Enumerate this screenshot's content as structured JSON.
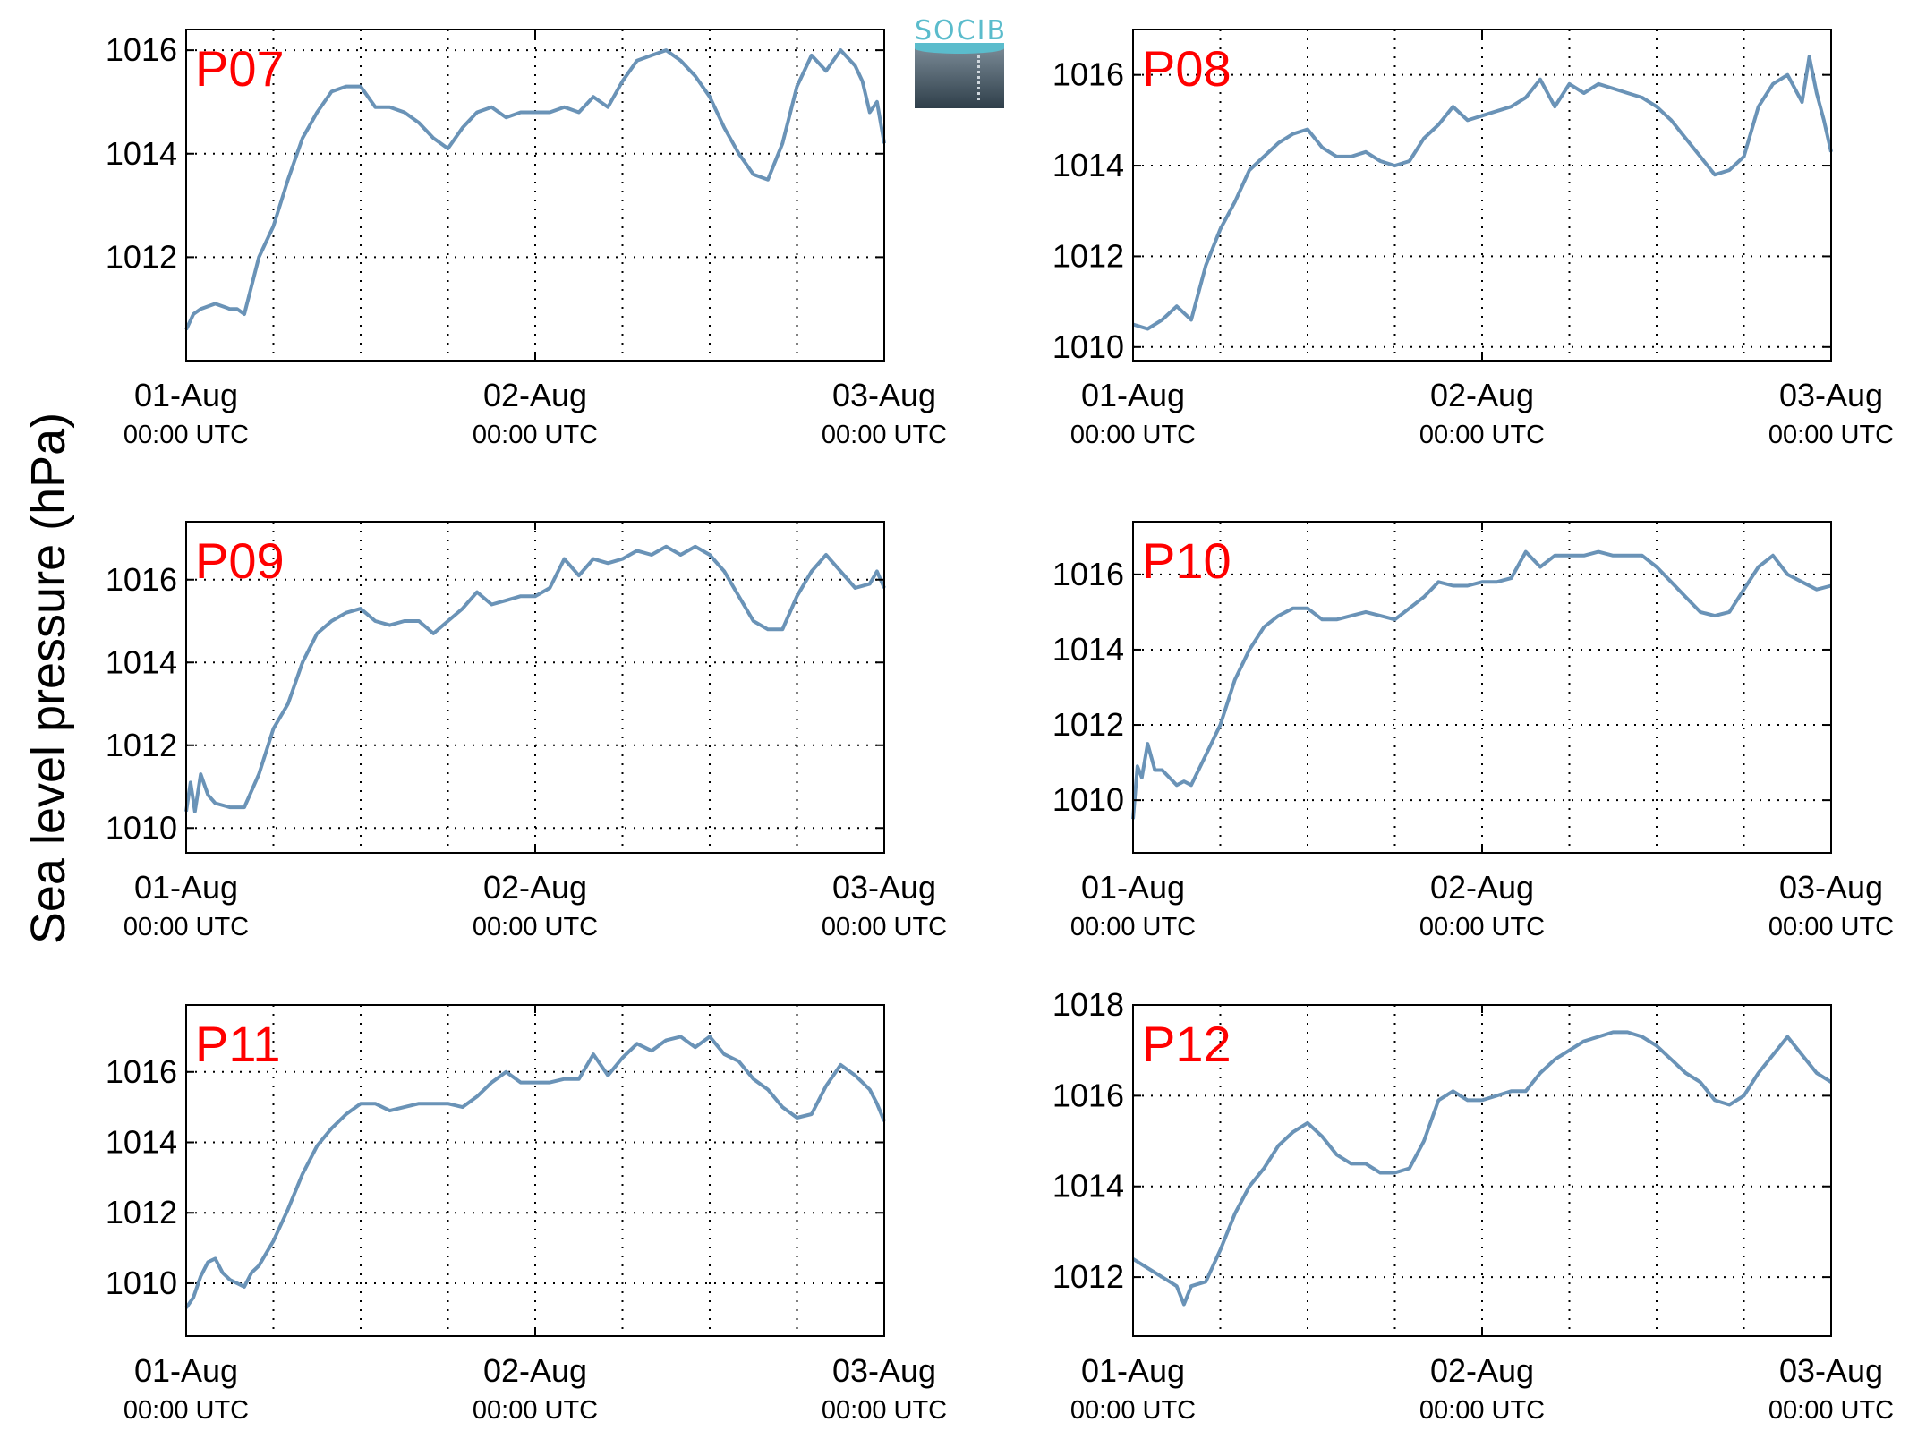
{
  "figure": {
    "ylabel": "Sea level pressure (hPa)",
    "logo_text": "SOCIB",
    "line_color": "#6a93b7",
    "station_label_color": "#ff0000"
  },
  "chart_data": [
    {
      "type": "line",
      "title": "P07",
      "x_ticks": [
        {
          "date": "01-Aug",
          "time": "00:00 UTC"
        },
        {
          "date": "02-Aug",
          "time": "00:00 UTC"
        },
        {
          "date": "03-Aug",
          "time": "00:00 UTC"
        }
      ],
      "xlim_hours": [
        0,
        48
      ],
      "ylim": [
        1010.0,
        1016.4
      ],
      "yticks": [
        1012,
        1014,
        1016
      ],
      "grid": true,
      "series": [
        {
          "x": [
            0,
            0.5,
            1,
            2,
            3,
            3.5,
            4,
            5,
            6,
            7,
            8,
            9,
            10,
            11,
            12,
            13,
            14,
            15,
            16,
            17,
            18,
            19,
            20,
            21,
            22,
            23,
            24,
            25,
            26,
            27,
            28,
            29,
            30,
            31,
            32,
            33,
            34,
            35,
            36,
            37,
            38,
            39,
            40,
            41,
            42,
            43,
            44,
            45,
            46,
            46.5,
            47,
            47.5,
            48
          ],
          "y": [
            1010.6,
            1010.9,
            1011.0,
            1011.1,
            1011.0,
            1011.0,
            1010.9,
            1012.0,
            1012.6,
            1013.5,
            1014.3,
            1014.8,
            1015.2,
            1015.3,
            1015.3,
            1014.9,
            1014.9,
            1014.8,
            1014.6,
            1014.3,
            1014.1,
            1014.5,
            1014.8,
            1014.9,
            1014.7,
            1014.8,
            1014.8,
            1014.8,
            1014.9,
            1014.8,
            1015.1,
            1014.9,
            1015.4,
            1015.8,
            1015.9,
            1016.0,
            1015.8,
            1015.5,
            1015.1,
            1014.5,
            1014.0,
            1013.6,
            1013.5,
            1014.2,
            1015.3,
            1015.9,
            1015.6,
            1016.0,
            1015.7,
            1015.4,
            1014.8,
            1015.0,
            1014.2
          ]
        }
      ]
    },
    {
      "type": "line",
      "title": "P08",
      "x_ticks": [
        {
          "date": "01-Aug",
          "time": "00:00 UTC"
        },
        {
          "date": "02-Aug",
          "time": "00:00 UTC"
        },
        {
          "date": "03-Aug",
          "time": "00:00 UTC"
        }
      ],
      "xlim_hours": [
        0,
        48
      ],
      "ylim": [
        1009.7,
        1017.0
      ],
      "yticks": [
        1010,
        1012,
        1014,
        1016
      ],
      "grid": true,
      "series": [
        {
          "x": [
            0,
            1,
            2,
            3,
            4,
            5,
            6,
            7,
            8,
            9,
            10,
            11,
            12,
            13,
            14,
            15,
            16,
            17,
            18,
            19,
            20,
            21,
            22,
            23,
            24,
            25,
            26,
            27,
            28,
            29,
            30,
            31,
            32,
            33,
            34,
            35,
            36,
            37,
            38,
            39,
            40,
            41,
            42,
            43,
            44,
            45,
            46,
            46.5,
            47,
            47.5,
            48
          ],
          "y": [
            1010.5,
            1010.4,
            1010.6,
            1010.9,
            1010.6,
            1011.8,
            1012.6,
            1013.2,
            1013.9,
            1014.2,
            1014.5,
            1014.7,
            1014.8,
            1014.4,
            1014.2,
            1014.2,
            1014.3,
            1014.1,
            1014.0,
            1014.1,
            1014.6,
            1014.9,
            1015.3,
            1015.0,
            1015.1,
            1015.2,
            1015.3,
            1015.5,
            1015.9,
            1015.3,
            1015.8,
            1015.6,
            1015.8,
            1015.7,
            1015.6,
            1015.5,
            1015.3,
            1015.0,
            1014.6,
            1014.2,
            1013.8,
            1013.9,
            1014.2,
            1015.3,
            1015.8,
            1016.0,
            1015.4,
            1016.4,
            1015.6,
            1015.0,
            1014.3
          ]
        }
      ]
    },
    {
      "type": "line",
      "title": "P09",
      "x_ticks": [
        {
          "date": "01-Aug",
          "time": "00:00 UTC"
        },
        {
          "date": "02-Aug",
          "time": "00:00 UTC"
        },
        {
          "date": "03-Aug",
          "time": "00:00 UTC"
        }
      ],
      "xlim_hours": [
        0,
        48
      ],
      "ylim": [
        1009.4,
        1017.4
      ],
      "yticks": [
        1010,
        1012,
        1014,
        1016
      ],
      "grid": true,
      "series": [
        {
          "x": [
            0,
            0.3,
            0.6,
            1,
            1.5,
            2,
            3,
            4,
            5,
            6,
            7,
            8,
            9,
            10,
            11,
            12,
            13,
            14,
            15,
            16,
            17,
            18,
            19,
            20,
            21,
            22,
            23,
            24,
            25,
            26,
            27,
            28,
            29,
            30,
            31,
            32,
            33,
            34,
            35,
            36,
            37,
            38,
            39,
            40,
            41,
            42,
            43,
            44,
            45,
            46,
            47,
            47.5,
            48
          ],
          "y": [
            1010.4,
            1011.1,
            1010.4,
            1011.3,
            1010.8,
            1010.6,
            1010.5,
            1010.5,
            1011.3,
            1012.4,
            1013.0,
            1014.0,
            1014.7,
            1015.0,
            1015.2,
            1015.3,
            1015.0,
            1014.9,
            1015.0,
            1015.0,
            1014.7,
            1015.0,
            1015.3,
            1015.7,
            1015.4,
            1015.5,
            1015.6,
            1015.6,
            1015.8,
            1016.5,
            1016.1,
            1016.5,
            1016.4,
            1016.5,
            1016.7,
            1016.6,
            1016.8,
            1016.6,
            1016.8,
            1016.6,
            1016.2,
            1015.6,
            1015.0,
            1014.8,
            1014.8,
            1015.6,
            1016.2,
            1016.6,
            1016.2,
            1015.8,
            1015.9,
            1016.2,
            1015.8
          ]
        }
      ]
    },
    {
      "type": "line",
      "title": "P10",
      "x_ticks": [
        {
          "date": "01-Aug",
          "time": "00:00 UTC"
        },
        {
          "date": "02-Aug",
          "time": "00:00 UTC"
        },
        {
          "date": "03-Aug",
          "time": "00:00 UTC"
        }
      ],
      "xlim_hours": [
        0,
        48
      ],
      "ylim": [
        1008.6,
        1017.4
      ],
      "yticks": [
        1010,
        1012,
        1014,
        1016
      ],
      "grid": true,
      "series": [
        {
          "x": [
            0,
            0.3,
            0.6,
            1,
            1.5,
            2,
            2.5,
            3,
            3.5,
            4,
            5,
            6,
            7,
            8,
            9,
            10,
            11,
            12,
            13,
            14,
            15,
            16,
            17,
            18,
            19,
            20,
            21,
            22,
            23,
            24,
            25,
            26,
            27,
            28,
            29,
            30,
            31,
            32,
            33,
            34,
            35,
            36,
            37,
            38,
            39,
            40,
            41,
            42,
            43,
            44,
            45,
            46,
            47,
            48
          ],
          "y": [
            1009.5,
            1010.9,
            1010.6,
            1011.5,
            1010.8,
            1010.8,
            1010.6,
            1010.4,
            1010.5,
            1010.4,
            1011.2,
            1012.0,
            1013.2,
            1014.0,
            1014.6,
            1014.9,
            1015.1,
            1015.1,
            1014.8,
            1014.8,
            1014.9,
            1015.0,
            1014.9,
            1014.8,
            1015.1,
            1015.4,
            1015.8,
            1015.7,
            1015.7,
            1015.8,
            1015.8,
            1015.9,
            1016.6,
            1016.2,
            1016.5,
            1016.5,
            1016.5,
            1016.6,
            1016.5,
            1016.5,
            1016.5,
            1016.2,
            1015.8,
            1015.4,
            1015.0,
            1014.9,
            1015.0,
            1015.6,
            1016.2,
            1016.5,
            1016.0,
            1015.8,
            1015.6,
            1015.7
          ]
        }
      ]
    },
    {
      "type": "line",
      "title": "P11",
      "x_ticks": [
        {
          "date": "01-Aug",
          "time": "00:00 UTC"
        },
        {
          "date": "02-Aug",
          "time": "00:00 UTC"
        },
        {
          "date": "03-Aug",
          "time": "00:00 UTC"
        }
      ],
      "xlim_hours": [
        0,
        48
      ],
      "ylim": [
        1008.5,
        1017.9
      ],
      "yticks": [
        1010,
        1012,
        1014,
        1016
      ],
      "grid": true,
      "series": [
        {
          "x": [
            0,
            0.5,
            1,
            1.5,
            2,
            2.5,
            3,
            3.5,
            4,
            4.5,
            5,
            6,
            7,
            8,
            9,
            10,
            11,
            12,
            13,
            14,
            15,
            16,
            17,
            18,
            19,
            20,
            21,
            22,
            23,
            24,
            25,
            26,
            27,
            28,
            29,
            30,
            31,
            32,
            33,
            34,
            35,
            36,
            37,
            38,
            39,
            40,
            41,
            42,
            43,
            44,
            45,
            46,
            47,
            47.5,
            48
          ],
          "y": [
            1009.3,
            1009.6,
            1010.2,
            1010.6,
            1010.7,
            1010.3,
            1010.1,
            1010.0,
            1009.9,
            1010.3,
            1010.5,
            1011.2,
            1012.1,
            1013.1,
            1013.9,
            1014.4,
            1014.8,
            1015.1,
            1015.1,
            1014.9,
            1015.0,
            1015.1,
            1015.1,
            1015.1,
            1015.0,
            1015.3,
            1015.7,
            1016.0,
            1015.7,
            1015.7,
            1015.7,
            1015.8,
            1015.8,
            1016.5,
            1015.9,
            1016.4,
            1016.8,
            1016.6,
            1016.9,
            1017.0,
            1016.7,
            1017.0,
            1016.5,
            1016.3,
            1015.8,
            1015.5,
            1015.0,
            1014.7,
            1014.8,
            1015.6,
            1016.2,
            1015.9,
            1015.5,
            1015.1,
            1014.6
          ]
        }
      ]
    },
    {
      "type": "line",
      "title": "P12",
      "x_ticks": [
        {
          "date": "01-Aug",
          "time": "00:00 UTC"
        },
        {
          "date": "02-Aug",
          "time": "00:00 UTC"
        },
        {
          "date": "03-Aug",
          "time": "00:00 UTC"
        }
      ],
      "xlim_hours": [
        0,
        48
      ],
      "ylim": [
        1010.7,
        1018.0
      ],
      "yticks": [
        1012,
        1014,
        1016,
        1018
      ],
      "grid": true,
      "series": [
        {
          "x": [
            0,
            1,
            2,
            3,
            3.5,
            4,
            5,
            6,
            7,
            8,
            9,
            10,
            11,
            12,
            13,
            14,
            15,
            16,
            17,
            18,
            19,
            20,
            21,
            22,
            23,
            24,
            25,
            26,
            27,
            28,
            29,
            30,
            31,
            32,
            33,
            34,
            35,
            36,
            37,
            38,
            39,
            40,
            41,
            42,
            43,
            44,
            45,
            46,
            47,
            48
          ],
          "y": [
            1012.4,
            1012.2,
            1012.0,
            1011.8,
            1011.4,
            1011.8,
            1011.9,
            1012.6,
            1013.4,
            1014.0,
            1014.4,
            1014.9,
            1015.2,
            1015.4,
            1015.1,
            1014.7,
            1014.5,
            1014.5,
            1014.3,
            1014.3,
            1014.4,
            1015.0,
            1015.9,
            1016.1,
            1015.9,
            1015.9,
            1016.0,
            1016.1,
            1016.1,
            1016.5,
            1016.8,
            1017.0,
            1017.2,
            1017.3,
            1017.4,
            1017.4,
            1017.3,
            1017.1,
            1016.8,
            1016.5,
            1016.3,
            1015.9,
            1015.8,
            1016.0,
            1016.5,
            1016.9,
            1017.3,
            1016.9,
            1016.5,
            1016.3
          ]
        }
      ]
    }
  ]
}
